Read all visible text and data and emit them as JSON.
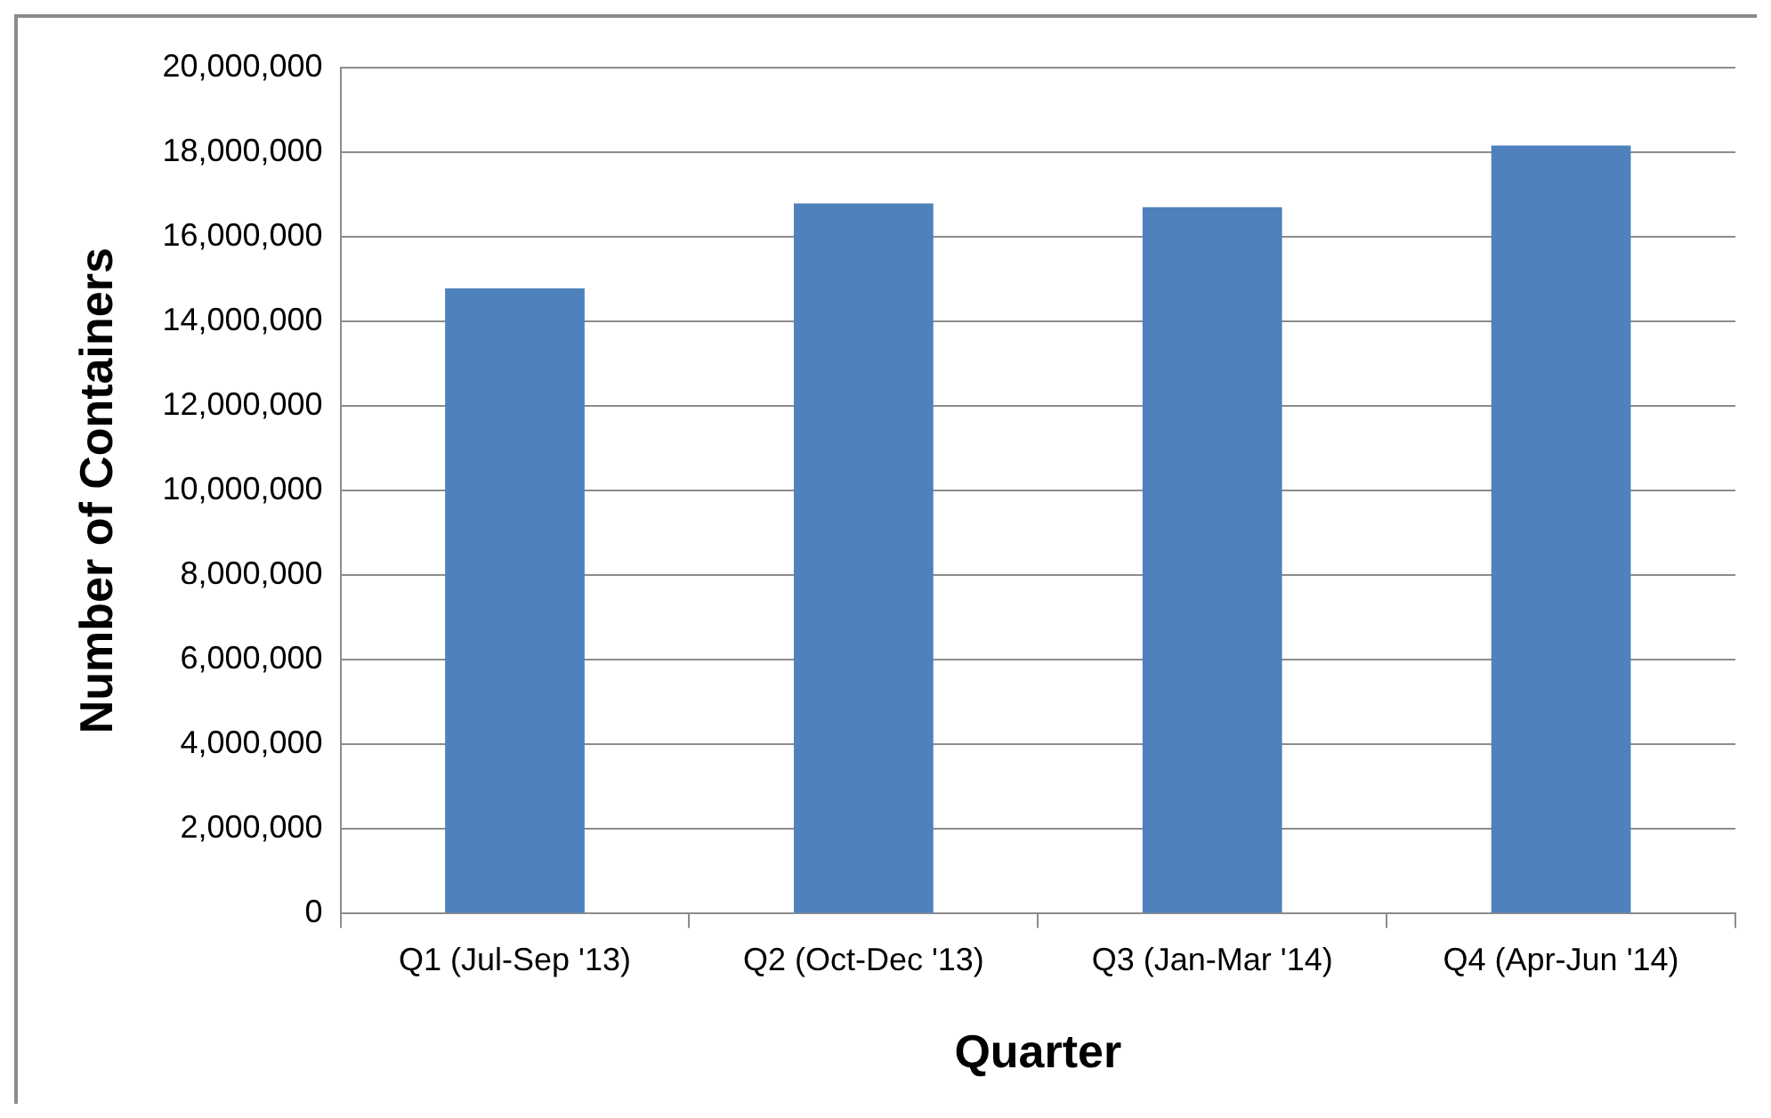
{
  "chart_data": {
    "type": "bar",
    "xlabel": "Quarter",
    "ylabel": "Number of Containers",
    "categories": [
      "Q1 (Jul-Sep '13)",
      "Q2 (Oct-Dec '13)",
      "Q3 (Jan-Mar '14)",
      "Q4 (Apr-Jun '14)"
    ],
    "values": [
      14780000,
      16790000,
      16700000,
      18160000
    ],
    "color": "#4f81bd",
    "ylim": [
      0,
      20000000
    ],
    "yticks": [
      0,
      {
        "value": 2000000,
        "label": "2,000,000"
      },
      {
        "value": 4000000,
        "label": "4,000,000"
      },
      {
        "value": 6000000,
        "label": "6,000,000"
      },
      {
        "value": 8000000,
        "label": "8,000,000"
      },
      {
        "value": 10000000,
        "label": "10,000,000"
      },
      {
        "value": 12000000,
        "label": "12,000,000"
      },
      {
        "value": 14000000,
        "label": "14,000,000"
      },
      {
        "value": 16000000,
        "label": "16,000,000"
      },
      {
        "value": 18000000,
        "label": "18,000,000"
      },
      {
        "value": 20000000,
        "label": "20,000,000"
      }
    ],
    "grid": "y"
  }
}
